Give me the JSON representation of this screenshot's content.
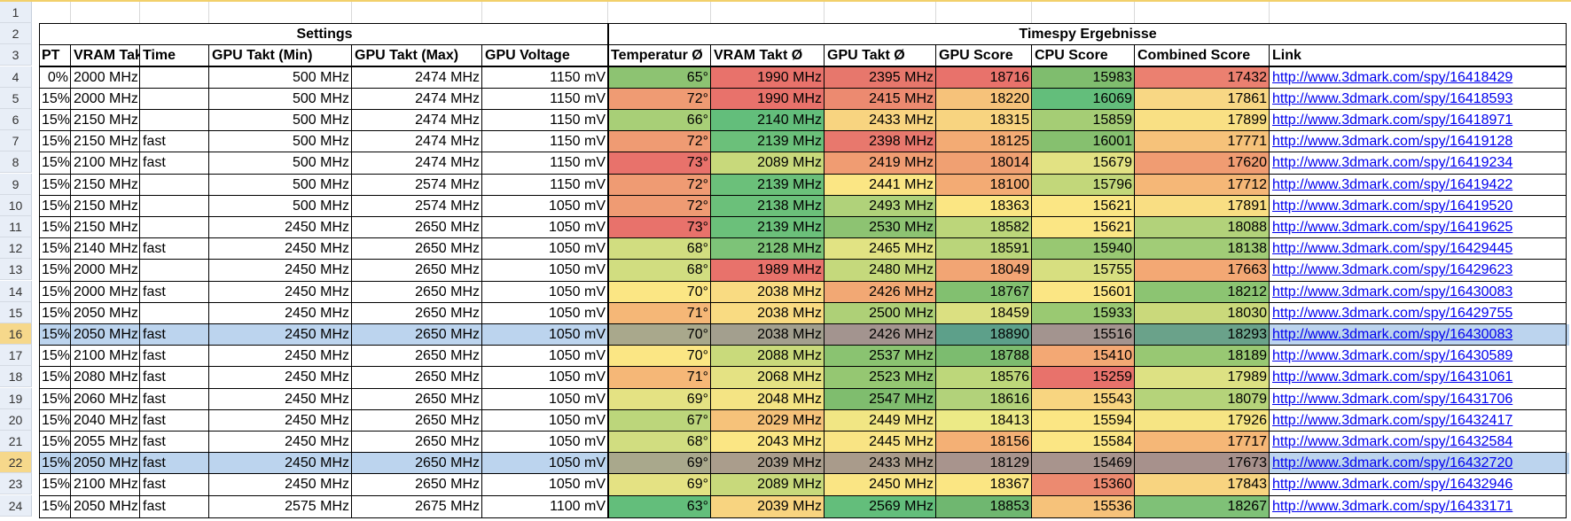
{
  "row_numbers": [
    "1",
    "2",
    "3",
    "4",
    "5",
    "6",
    "7",
    "8",
    "9",
    "10",
    "11",
    "12",
    "13",
    "14",
    "15",
    "16",
    "17",
    "18",
    "19",
    "20",
    "21",
    "22",
    "23",
    "24"
  ],
  "selected_rows": [
    16,
    22
  ],
  "section_headers": {
    "settings": "Settings",
    "results": "Timespy Ergebnisse"
  },
  "columns": [
    "PT",
    "VRAM Takt",
    "Time",
    "GPU Takt (Min)",
    "GPU Takt (Max)",
    "GPU Voltage",
    "Temperatur Ø",
    "VRAM Takt Ø",
    "GPU Takt Ø",
    "GPU Score",
    "CPU Score",
    "Combined Score",
    "Link"
  ],
  "rows": [
    {
      "pt": "0%",
      "vram": "2000 MHz",
      "time": "",
      "gmin": "500 MHz",
      "gmax": "2474 MHz",
      "volt": "1150 mV",
      "temp": "65°",
      "vavg": "1990 MHz",
      "gavg": "2395 MHz",
      "gpu": "18716",
      "cpu": "15983",
      "comb": "17432",
      "link": "http://www.3dmark.com/spy/16418429",
      "c": [
        "#8dc372",
        "#e8726b",
        "#e7776c",
        "#e8726b",
        "#7fbd6e",
        "#eb8070"
      ]
    },
    {
      "pt": "15%",
      "vram": "2000 MHz",
      "time": "",
      "gmin": "500 MHz",
      "gmax": "2474 MHz",
      "volt": "1150 mV",
      "temp": "72°",
      "vavg": "1990 MHz",
      "gavg": "2415 MHz",
      "gpu": "18220",
      "cpu": "16069",
      "comb": "17861",
      "link": "http://www.3dmark.com/spy/16418593",
      "c": [
        "#ef9b73",
        "#e8726b",
        "#ec8a70",
        "#f6c27a",
        "#63be7b",
        "#f8d784"
      ]
    },
    {
      "pt": "15%",
      "vram": "2150 MHz",
      "time": "",
      "gmin": "500 MHz",
      "gmax": "2474 MHz",
      "volt": "1150 mV",
      "temp": "66°",
      "vavg": "2140 MHz",
      "gavg": "2433 MHz",
      "gpu": "18315",
      "cpu": "15859",
      "comb": "17899",
      "link": "http://www.3dmark.com/spy/16418971",
      "c": [
        "#a8cf77",
        "#63be7b",
        "#f8d480",
        "#f8d480",
        "#a5cd75",
        "#f9e084"
      ]
    },
    {
      "pt": "15%",
      "vram": "2150 MHz",
      "time": "fast",
      "gmin": "500 MHz",
      "gmax": "2474 MHz",
      "volt": "1150 mV",
      "temp": "72°",
      "vavg": "2139 MHz",
      "gavg": "2398 MHz",
      "gpu": "18125",
      "cpu": "16001",
      "comb": "17771",
      "link": "http://www.3dmark.com/spy/16419128",
      "c": [
        "#ef9b73",
        "#6bc07a",
        "#e8786d",
        "#f3ab74",
        "#86c06f",
        "#f6c27a"
      ]
    },
    {
      "pt": "15%",
      "vram": "2100 MHz",
      "time": "fast",
      "gmin": "500 MHz",
      "gmax": "2474 MHz",
      "volt": "1150 mV",
      "temp": "73°",
      "vavg": "2089 MHz",
      "gavg": "2419 MHz",
      "gpu": "18014",
      "cpu": "15679",
      "comb": "17620",
      "link": "http://www.3dmark.com/spy/16419234",
      "c": [
        "#e8726b",
        "#c8d97b",
        "#f09c72",
        "#f0a072",
        "#e2e283",
        "#f09c72"
      ]
    },
    {
      "pt": "15%",
      "vram": "2150 MHz",
      "time": "",
      "gmin": "500 MHz",
      "gmax": "2574 MHz",
      "volt": "1150 mV",
      "temp": "72°",
      "vavg": "2139 MHz",
      "gavg": "2441 MHz",
      "gpu": "18100",
      "cpu": "15796",
      "comb": "17712",
      "link": "http://www.3dmark.com/spy/16419422",
      "c": [
        "#ef9b73",
        "#6bc07a",
        "#fbe684",
        "#f3ab74",
        "#c2d77a",
        "#f5b777"
      ]
    },
    {
      "pt": "15%",
      "vram": "2150 MHz",
      "time": "",
      "gmin": "500 MHz",
      "gmax": "2574 MHz",
      "volt": "1050 mV",
      "temp": "72°",
      "vavg": "2138 MHz",
      "gavg": "2493 MHz",
      "gpu": "18363",
      "cpu": "15621",
      "comb": "17891",
      "link": "http://www.3dmark.com/spy/16419520",
      "c": [
        "#ef9b73",
        "#6bc07a",
        "#b0d27a",
        "#fbe683",
        "#fbe684",
        "#f9de83"
      ]
    },
    {
      "pt": "15%",
      "vram": "2150 MHz",
      "time": "",
      "gmin": "2450 MHz",
      "gmax": "2650 MHz",
      "volt": "1050 mV",
      "temp": "73°",
      "vavg": "2139 MHz",
      "gavg": "2530 MHz",
      "gpu": "18582",
      "cpu": "15621",
      "comb": "18088",
      "link": "http://www.3dmark.com/spy/16419625",
      "c": [
        "#e8726b",
        "#6bc07a",
        "#8dc372",
        "#bcd67a",
        "#fbe684",
        "#b2d27a"
      ]
    },
    {
      "pt": "15%",
      "vram": "2140 MHz",
      "time": "fast",
      "gmin": "2450 MHz",
      "gmax": "2650 MHz",
      "volt": "1050 mV",
      "temp": "68°",
      "vavg": "2128 MHz",
      "gavg": "2465 MHz",
      "gpu": "18591",
      "cpu": "15940",
      "comb": "18138",
      "link": "http://www.3dmark.com/spy/16429445",
      "c": [
        "#d1dd80",
        "#7dc378",
        "#e1e383",
        "#bad57a",
        "#98c872",
        "#a1cc77"
      ]
    },
    {
      "pt": "15%",
      "vram": "2000 MHz",
      "time": "",
      "gmin": "2450 MHz",
      "gmax": "2650 MHz",
      "volt": "1050 mV",
      "temp": "68°",
      "vavg": "1989 MHz",
      "gavg": "2480 MHz",
      "gpu": "18049",
      "cpu": "15755",
      "comb": "17663",
      "link": "http://www.3dmark.com/spy/16429623",
      "c": [
        "#d1dd80",
        "#e8726b",
        "#c5d97c",
        "#f2a574",
        "#d7df80",
        "#f3a874"
      ]
    },
    {
      "pt": "15%",
      "vram": "2000 MHz",
      "time": "fast",
      "gmin": "2450 MHz",
      "gmax": "2650 MHz",
      "volt": "1050 mV",
      "temp": "70°",
      "vavg": "2038 MHz",
      "gavg": "2426 MHz",
      "gpu": "18767",
      "cpu": "15601",
      "comb": "18212",
      "link": "http://www.3dmark.com/spy/16430083",
      "c": [
        "#fbe684",
        "#f9db82",
        "#f2a874",
        "#82c070",
        "#fbe684",
        "#8cc472"
      ]
    },
    {
      "pt": "15%",
      "vram": "2050 MHz",
      "time": "",
      "gmin": "2450 MHz",
      "gmax": "2650 MHz",
      "volt": "1050 mV",
      "temp": "71°",
      "vavg": "2038 MHz",
      "gavg": "2500 MHz",
      "gpu": "18459",
      "cpu": "15933",
      "comb": "18030",
      "link": "http://www.3dmark.com/spy/16429755",
      "c": [
        "#f5b777",
        "#f9db82",
        "#aed077",
        "#dbe081",
        "#9ac972",
        "#cad97b"
      ]
    },
    {
      "pt": "15%",
      "vram": "2050 MHz",
      "time": "fast",
      "gmin": "2450 MHz",
      "gmax": "2650 MHz",
      "volt": "1050 mV",
      "temp": "70°",
      "vavg": "2038 MHz",
      "gavg": "2426 MHz",
      "gpu": "18890",
      "cpu": "15516",
      "comb": "18293",
      "link": "http://www.3dmark.com/spy/16430083",
      "c": [
        "#a9a88c",
        "#a39f8e",
        "#a3948f",
        "#5da08a",
        "#a3948f",
        "#6aa28a"
      ],
      "sel": true
    },
    {
      "pt": "15%",
      "vram": "2100 MHz",
      "time": "fast",
      "gmin": "2450 MHz",
      "gmax": "2650 MHz",
      "volt": "1050 mV",
      "temp": "70°",
      "vavg": "2088 MHz",
      "gavg": "2537 MHz",
      "gpu": "18788",
      "cpu": "15410",
      "comb": "18189",
      "link": "http://www.3dmark.com/spy/16430589",
      "c": [
        "#fbe684",
        "#c9da7b",
        "#8ac371",
        "#7cbc6f",
        "#f3a874",
        "#98c873"
      ]
    },
    {
      "pt": "15%",
      "vram": "2080 MHz",
      "time": "fast",
      "gmin": "2450 MHz",
      "gmax": "2650 MHz",
      "volt": "1050 mV",
      "temp": "71°",
      "vavg": "2068 MHz",
      "gavg": "2523 MHz",
      "gpu": "18576",
      "cpu": "15259",
      "comb": "17989",
      "link": "http://www.3dmark.com/spy/16431061",
      "c": [
        "#f5b777",
        "#e4e283",
        "#95c772",
        "#bdd77a",
        "#e8726b",
        "#dde183"
      ]
    },
    {
      "pt": "15%",
      "vram": "2060 MHz",
      "time": "fast",
      "gmin": "2450 MHz",
      "gmax": "2650 MHz",
      "volt": "1050 mV",
      "temp": "69°",
      "vavg": "2048 MHz",
      "gavg": "2547 MHz",
      "gpu": "18616",
      "cpu": "15543",
      "comb": "18079",
      "link": "http://www.3dmark.com/spy/16431706",
      "c": [
        "#e4e283",
        "#f4e484",
        "#7fbd6e",
        "#b2d27a",
        "#f8d580",
        "#b5d37a"
      ]
    },
    {
      "pt": "15%",
      "vram": "2040 MHz",
      "time": "fast",
      "gmin": "2450 MHz",
      "gmax": "2650 MHz",
      "volt": "1050 mV",
      "temp": "67°",
      "vavg": "2029 MHz",
      "gavg": "2449 MHz",
      "gpu": "18413",
      "cpu": "15594",
      "comb": "17926",
      "link": "http://www.3dmark.com/spy/16432417",
      "c": [
        "#bcd67b",
        "#f6c27a",
        "#f1e684",
        "#ecea86",
        "#fbe684",
        "#f6e584"
      ]
    },
    {
      "pt": "15%",
      "vram": "2055 MHz",
      "time": "fast",
      "gmin": "2450 MHz",
      "gmax": "2650 MHz",
      "volt": "1050 mV",
      "temp": "68°",
      "vavg": "2043 MHz",
      "gavg": "2445 MHz",
      "gpu": "18156",
      "cpu": "15584",
      "comb": "17717",
      "link": "http://www.3dmark.com/spy/16432584",
      "c": [
        "#d1dd80",
        "#fbe684",
        "#f9e484",
        "#f4b075",
        "#fbe684",
        "#f5b777"
      ]
    },
    {
      "pt": "15%",
      "vram": "2050 MHz",
      "time": "fast",
      "gmin": "2450 MHz",
      "gmax": "2650 MHz",
      "volt": "1050 mV",
      "temp": "69°",
      "vavg": "2039 MHz",
      "gavg": "2433 MHz",
      "gpu": "18129",
      "cpu": "15469",
      "comb": "17673",
      "link": "http://www.3dmark.com/spy/16432720",
      "c": [
        "#a9a88c",
        "#aa9d8c",
        "#a99b8b",
        "#a8948d",
        "#a8948d",
        "#a7918c"
      ],
      "sel": true
    },
    {
      "pt": "15%",
      "vram": "2100 MHz",
      "time": "fast",
      "gmin": "2450 MHz",
      "gmax": "2650 MHz",
      "volt": "1050 mV",
      "temp": "69°",
      "vavg": "2089 MHz",
      "gavg": "2450 MHz",
      "gpu": "18367",
      "cpu": "15360",
      "comb": "17843",
      "link": "http://www.3dmark.com/spy/16432946",
      "c": [
        "#e4e283",
        "#c8d97b",
        "#fae584",
        "#fbe683",
        "#ec8a70",
        "#f8d480"
      ]
    },
    {
      "pt": "15%",
      "vram": "2050 MHz",
      "time": "fast",
      "gmin": "2575 MHz",
      "gmax": "2675 MHz",
      "volt": "1100 mV",
      "temp": "63°",
      "vavg": "2039 MHz",
      "gavg": "2569 MHz",
      "gpu": "18853",
      "cpu": "15536",
      "comb": "18267",
      "link": "http://www.3dmark.com/spy/16433171",
      "c": [
        "#63be7b",
        "#f8d480",
        "#63be7b",
        "#6fb770",
        "#f6c27a",
        "#7fc177"
      ]
    }
  ]
}
